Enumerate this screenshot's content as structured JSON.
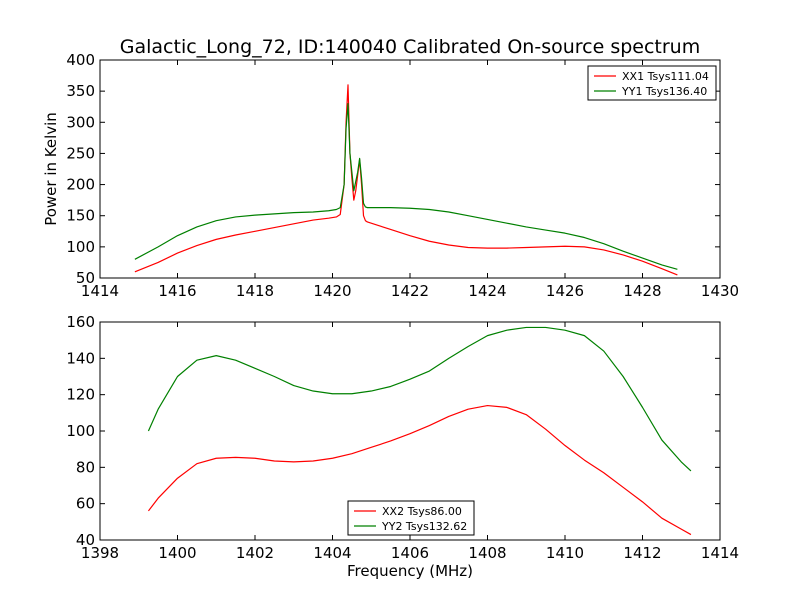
{
  "figure_title": "Galactic_Long_72, ID:140040 Calibrated On-source spectrum",
  "colors": {
    "red": "#ff0000",
    "green": "#008000",
    "axis": "#000000",
    "background": "#ffffff"
  },
  "chart_data": [
    {
      "type": "line",
      "title": "Galactic_Long_72, ID:140040 Calibrated On-source spectrum",
      "xlabel": "",
      "ylabel": "Power in Kelvin",
      "xlim": [
        1414,
        1430
      ],
      "ylim": [
        50,
        400
      ],
      "xticks": [
        1414,
        1416,
        1418,
        1420,
        1422,
        1424,
        1426,
        1428,
        1430
      ],
      "yticks": [
        50,
        100,
        150,
        200,
        250,
        300,
        350,
        400
      ],
      "grid": false,
      "legend": "top-right",
      "series": [
        {
          "name": "XX1 Tsys111.04",
          "color": "#ff0000",
          "x": [
            1414.9,
            1415.5,
            1416.0,
            1416.5,
            1417.0,
            1417.5,
            1418.0,
            1418.5,
            1419.0,
            1419.5,
            1419.9,
            1420.1,
            1420.2,
            1420.3,
            1420.35,
            1420.4,
            1420.45,
            1420.5,
            1420.55,
            1420.6,
            1420.65,
            1420.7,
            1420.75,
            1420.8,
            1420.85,
            1420.9,
            1421.0,
            1421.2,
            1421.5,
            1422.0,
            1422.5,
            1423.0,
            1423.5,
            1424.0,
            1424.5,
            1425.0,
            1425.5,
            1426.0,
            1426.5,
            1427.0,
            1427.5,
            1428.0,
            1428.5,
            1428.9
          ],
          "y": [
            60,
            75,
            90,
            102,
            112,
            119,
            125,
            131,
            137,
            143,
            146,
            148,
            152,
            200,
            300,
            360,
            250,
            210,
            175,
            190,
            215,
            240,
            200,
            150,
            142,
            140,
            138,
            134,
            128,
            118,
            109,
            103,
            99,
            98,
            98,
            99,
            100,
            101,
            100,
            95,
            87,
            77,
            65,
            55
          ]
        },
        {
          "name": "YY1 Tsys136.40",
          "color": "#008000",
          "x": [
            1414.9,
            1415.5,
            1416.0,
            1416.5,
            1417.0,
            1417.5,
            1418.0,
            1418.5,
            1419.0,
            1419.5,
            1419.9,
            1420.1,
            1420.2,
            1420.3,
            1420.35,
            1420.4,
            1420.45,
            1420.5,
            1420.55,
            1420.6,
            1420.65,
            1420.7,
            1420.75,
            1420.8,
            1420.85,
            1420.9,
            1421.0,
            1421.5,
            1422.0,
            1422.5,
            1423.0,
            1423.5,
            1424.0,
            1424.5,
            1425.0,
            1425.5,
            1426.0,
            1426.5,
            1427.0,
            1427.5,
            1428.0,
            1428.5,
            1428.9
          ],
          "y": [
            80,
            100,
            118,
            132,
            142,
            148,
            151,
            153,
            155,
            156,
            158,
            160,
            163,
            200,
            290,
            330,
            250,
            220,
            190,
            205,
            220,
            242,
            210,
            170,
            164,
            163,
            163,
            163,
            162,
            160,
            156,
            150,
            144,
            138,
            132,
            127,
            122,
            115,
            105,
            93,
            82,
            71,
            64
          ]
        }
      ]
    },
    {
      "type": "line",
      "title": "",
      "xlabel": "Frequency (MHz)",
      "ylabel": "",
      "xlim": [
        1398,
        1414
      ],
      "ylim": [
        40,
        160
      ],
      "xticks": [
        1398,
        1400,
        1402,
        1404,
        1406,
        1408,
        1410,
        1412,
        1414
      ],
      "yticks": [
        40,
        60,
        80,
        100,
        120,
        140,
        160
      ],
      "grid": false,
      "legend": "bottom-center",
      "series": [
        {
          "name": "XX2 Tsys86.00",
          "color": "#ff0000",
          "x": [
            1399.25,
            1399.5,
            1400.0,
            1400.5,
            1401.0,
            1401.5,
            1402.0,
            1402.5,
            1403.0,
            1403.5,
            1404.0,
            1404.5,
            1405.0,
            1405.5,
            1406.0,
            1406.5,
            1407.0,
            1407.5,
            1408.0,
            1408.5,
            1409.0,
            1409.5,
            1410.0,
            1410.5,
            1411.0,
            1411.5,
            1412.0,
            1412.5,
            1413.0,
            1413.25
          ],
          "y": [
            56,
            63,
            74,
            82,
            85,
            85.5,
            85,
            83.5,
            83,
            83.5,
            85,
            87.5,
            91,
            94.5,
            98.5,
            103,
            108,
            112,
            114,
            113,
            109,
            101,
            92,
            84,
            77,
            69,
            61,
            52,
            46,
            43
          ]
        },
        {
          "name": "YY2 Tsys132.62",
          "color": "#008000",
          "x": [
            1399.25,
            1399.5,
            1400.0,
            1400.5,
            1401.0,
            1401.5,
            1402.0,
            1402.5,
            1403.0,
            1403.5,
            1404.0,
            1404.5,
            1405.0,
            1405.5,
            1406.0,
            1406.5,
            1407.0,
            1407.5,
            1408.0,
            1408.5,
            1409.0,
            1409.5,
            1410.0,
            1410.5,
            1411.0,
            1411.5,
            1412.0,
            1412.5,
            1413.0,
            1413.25
          ],
          "y": [
            100,
            112,
            130,
            139,
            141.5,
            139,
            134.5,
            130,
            125,
            122,
            120.5,
            120.5,
            122,
            124.5,
            128.5,
            133,
            140,
            146.5,
            152.5,
            155.5,
            157,
            157,
            155.5,
            152.5,
            144,
            130,
            113,
            95,
            83,
            78
          ]
        }
      ]
    }
  ]
}
